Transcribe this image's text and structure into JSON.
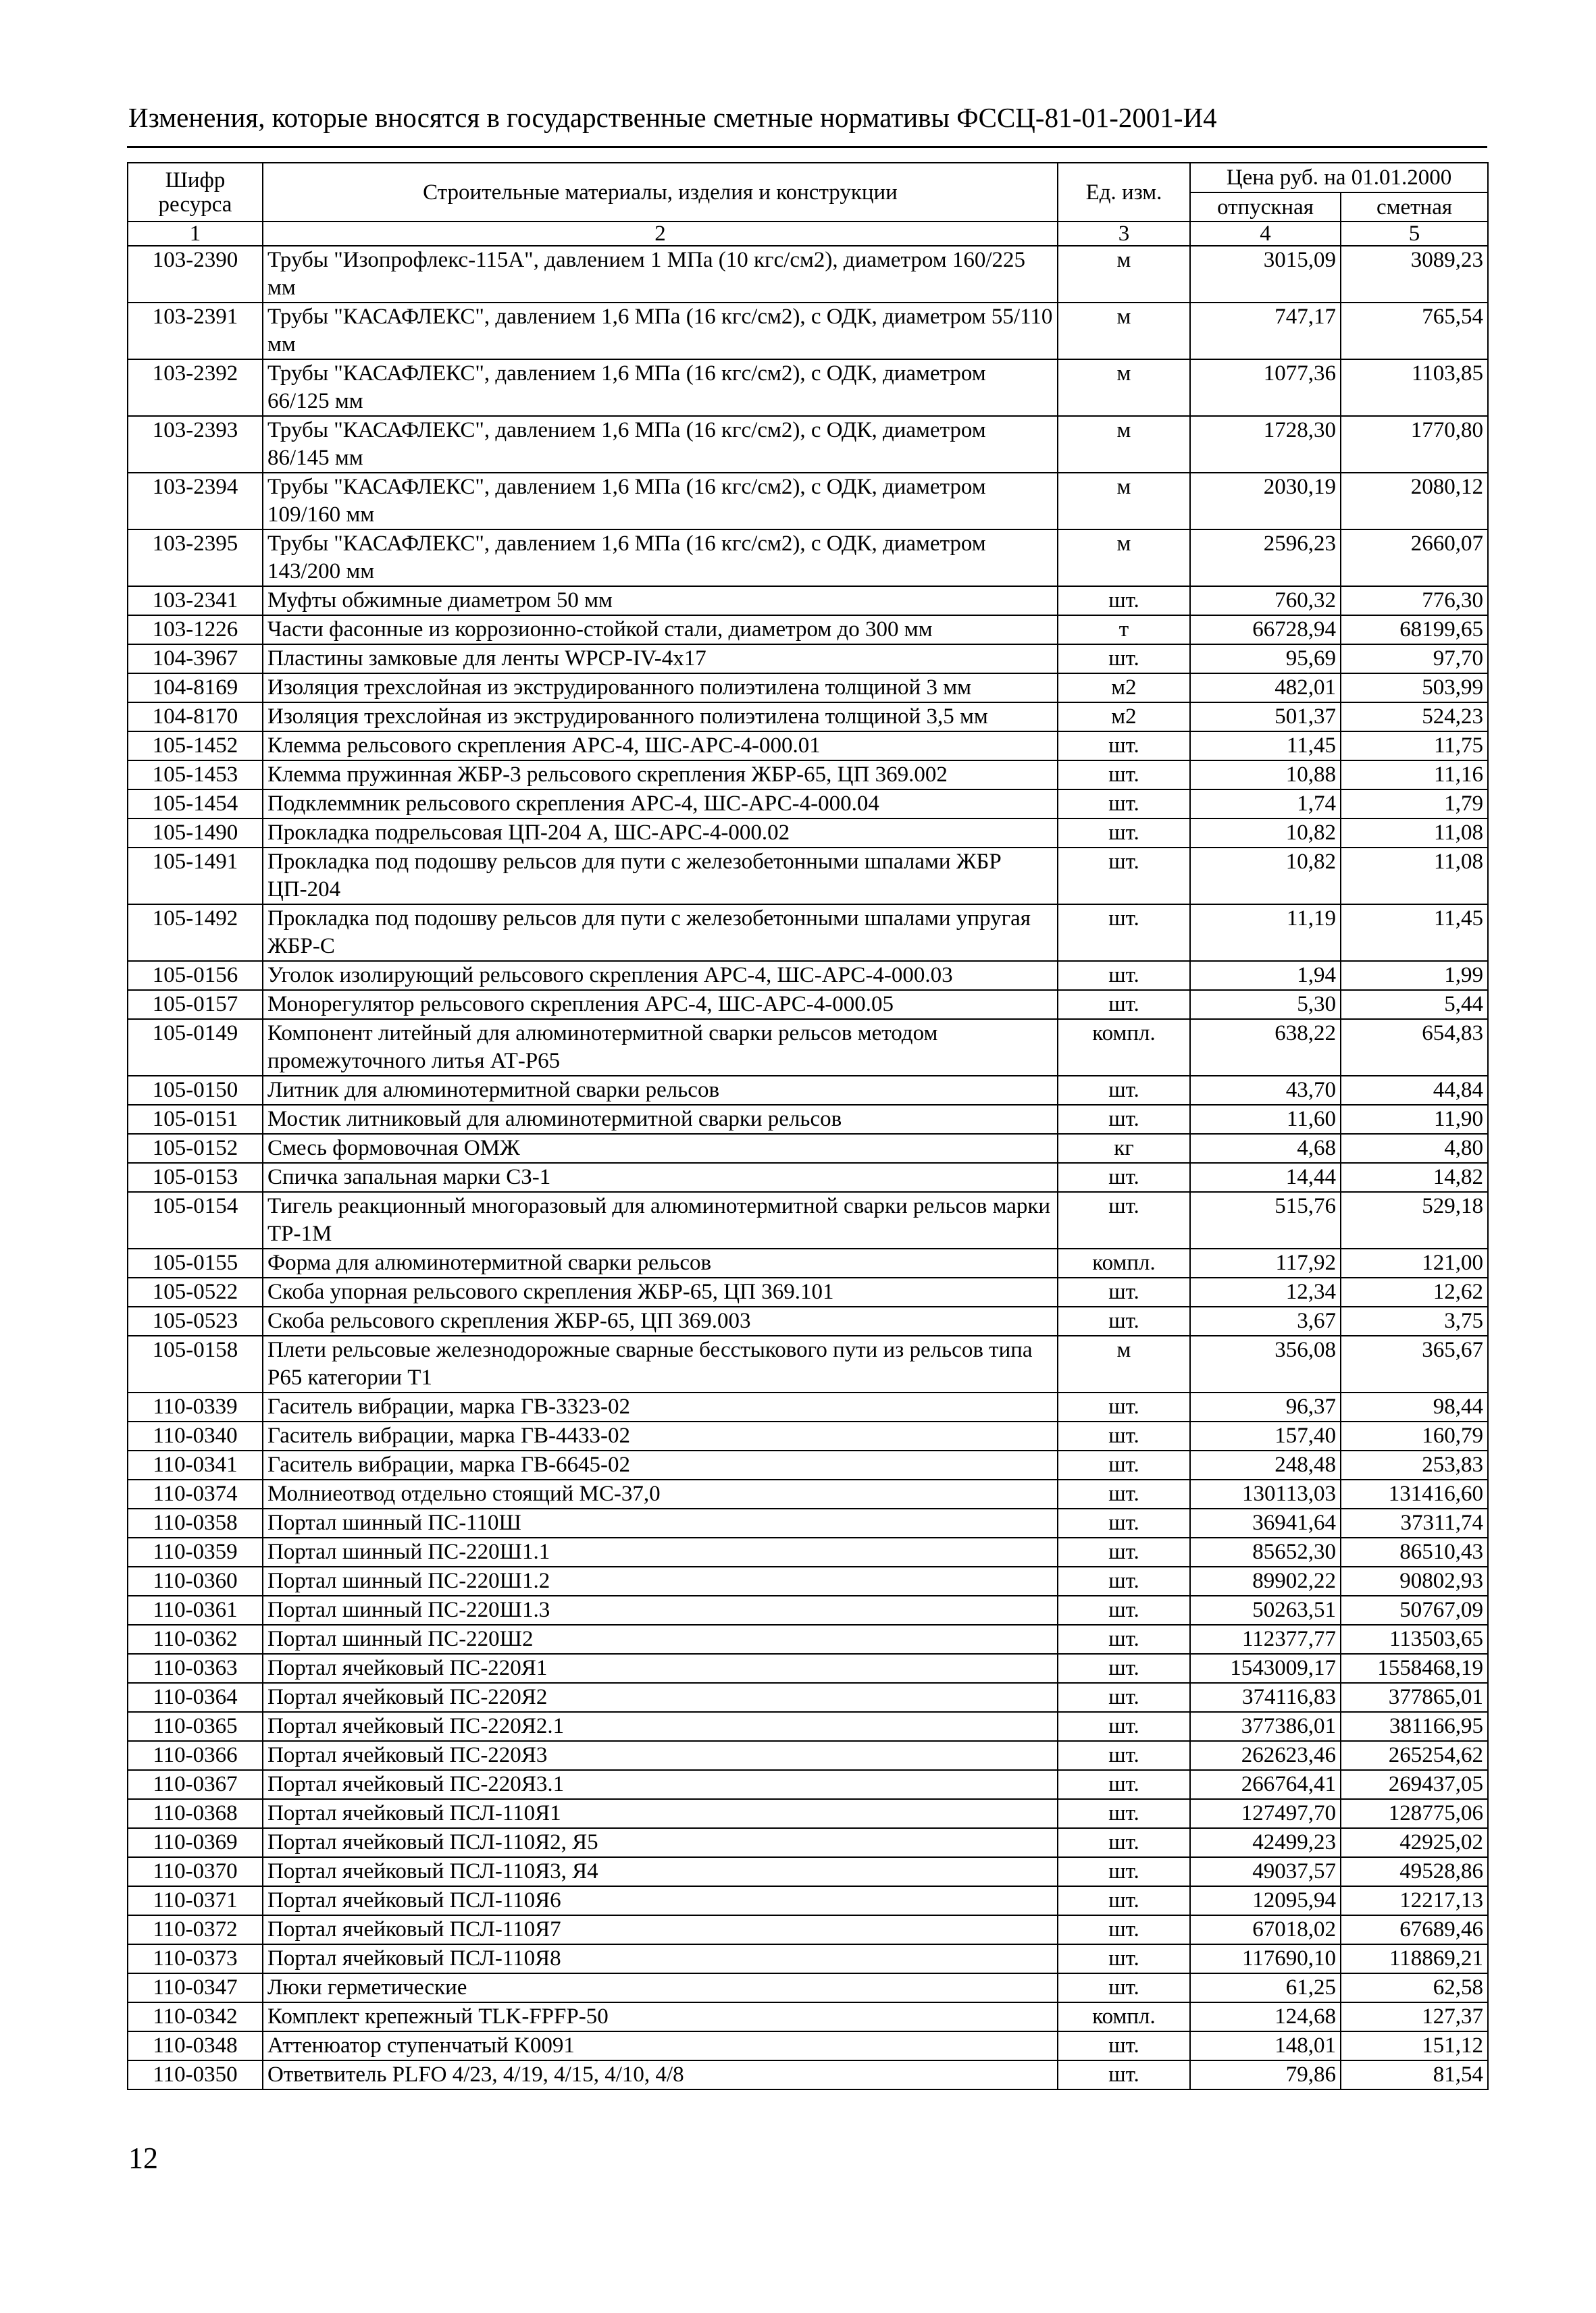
{
  "header": {
    "title": "Изменения, которые вносятся в государственные сметные нормативы ФССЦ-81-01-2001-И4"
  },
  "table": {
    "columns": {
      "code": "Шифр ресурса",
      "name": "Строительные материалы, изделия и конструкции",
      "unit": "Ед. изм.",
      "price_group": "Цена руб. на 01.01.2000",
      "release": "отпускная",
      "estimate": "сметная"
    },
    "column_numbers": [
      "1",
      "2",
      "3",
      "4",
      "5"
    ],
    "rows": [
      [
        "103-2390",
        "Трубы \"Изопрофлекс-115А\", давлением 1 МПа (10 кгс/см2), диаметром 160/225 мм",
        "м",
        "3015,09",
        "3089,23"
      ],
      [
        "103-2391",
        "Трубы \"КАСАФЛЕКС\", давлением 1,6 МПа (16 кгс/см2), с ОДК, диаметром 55/110 мм",
        "м",
        "747,17",
        "765,54"
      ],
      [
        "103-2392",
        "Трубы \"КАСАФЛЕКС\", давлением 1,6 МПа (16 кгс/см2), с ОДК, диаметром 66/125 мм",
        "м",
        "1077,36",
        "1103,85"
      ],
      [
        "103-2393",
        "Трубы \"КАСАФЛЕКС\", давлением 1,6 МПа (16 кгс/см2), с ОДК, диаметром 86/145 мм",
        "м",
        "1728,30",
        "1770,80"
      ],
      [
        "103-2394",
        "Трубы \"КАСАФЛЕКС\", давлением 1,6 МПа (16 кгс/см2), с ОДК, диаметром 109/160 мм",
        "м",
        "2030,19",
        "2080,12"
      ],
      [
        "103-2395",
        "Трубы \"КАСАФЛЕКС\", давлением 1,6 МПа (16 кгс/см2), с ОДК, диаметром 143/200 мм",
        "м",
        "2596,23",
        "2660,07"
      ],
      [
        "103-2341",
        "Муфты обжимные диаметром 50 мм",
        "шт.",
        "760,32",
        "776,30"
      ],
      [
        "103-1226",
        "Части фасонные из коррозионно-стойкой стали, диаметром до 300 мм",
        "т",
        "66728,94",
        "68199,65"
      ],
      [
        "104-3967",
        "Пластины замковые для ленты WPCP-IV-4x17",
        "шт.",
        "95,69",
        "97,70"
      ],
      [
        "104-8169",
        "Изоляция трехслойная из экструдированного полиэтилена толщиной 3 мм",
        "м2",
        "482,01",
        "503,99"
      ],
      [
        "104-8170",
        "Изоляция трехслойная из экструдированного полиэтилена толщиной 3,5 мм",
        "м2",
        "501,37",
        "524,23"
      ],
      [
        "105-1452",
        "Клемма рельсового скрепления АРС-4, ШС-АРС-4-000.01",
        "шт.",
        "11,45",
        "11,75"
      ],
      [
        "105-1453",
        "Клемма пружинная ЖБР-3 рельсового скрепления ЖБР-65, ЦП 369.002",
        "шт.",
        "10,88",
        "11,16"
      ],
      [
        "105-1454",
        "Подклеммник рельсового скрепления АРС-4, ШС-АРС-4-000.04",
        "шт.",
        "1,74",
        "1,79"
      ],
      [
        "105-1490",
        "Прокладка подрельсовая ЦП-204 А, ШС-АРС-4-000.02",
        "шт.",
        "10,82",
        "11,08"
      ],
      [
        "105-1491",
        "Прокладка под подошву рельсов для пути с железобетонными шпалами ЖБР ЦП-204",
        "шт.",
        "10,82",
        "11,08"
      ],
      [
        "105-1492",
        "Прокладка под подошву рельсов для пути с железобетонными шпалами упругая ЖБР-С",
        "шт.",
        "11,19",
        "11,45"
      ],
      [
        "105-0156",
        "Уголок изолирующий рельсового скрепления АРС-4, ШС-АРС-4-000.03",
        "шт.",
        "1,94",
        "1,99"
      ],
      [
        "105-0157",
        "Монорегулятор рельсового скрепления АРС-4, ШС-АРС-4-000.05",
        "шт.",
        "5,30",
        "5,44"
      ],
      [
        "105-0149",
        "Компонент литейный для алюминотермитной сварки рельсов методом промежуточного литья АТ-Р65",
        "компл.",
        "638,22",
        "654,83"
      ],
      [
        "105-0150",
        "Литник для алюминотермитной сварки рельсов",
        "шт.",
        "43,70",
        "44,84"
      ],
      [
        "105-0151",
        "Мостик литниковый для алюминотермитной сварки рельсов",
        "шт.",
        "11,60",
        "11,90"
      ],
      [
        "105-0152",
        "Смесь формовочная ОМЖ",
        "кг",
        "4,68",
        "4,80"
      ],
      [
        "105-0153",
        "Спичка запальная марки СЗ-1",
        "шт.",
        "14,44",
        "14,82"
      ],
      [
        "105-0154",
        "Тигель реакционный многоразовый для алюминотермитной сварки рельсов марки ТР-1М",
        "шт.",
        "515,76",
        "529,18"
      ],
      [
        "105-0155",
        "Форма для алюминотермитной сварки рельсов",
        "компл.",
        "117,92",
        "121,00"
      ],
      [
        "105-0522",
        "Скоба упорная рельсового скрепления ЖБР-65, ЦП 369.101",
        "шт.",
        "12,34",
        "12,62"
      ],
      [
        "105-0523",
        "Скоба рельсового скрепления ЖБР-65, ЦП 369.003",
        "шт.",
        "3,67",
        "3,75"
      ],
      [
        "105-0158",
        "Плети рельсовые железнодорожные сварные бесстыкового пути из рельсов типа Р65 категории Т1",
        "м",
        "356,08",
        "365,67"
      ],
      [
        "110-0339",
        "Гаситель вибрации, марка ГВ-3323-02",
        "шт.",
        "96,37",
        "98,44"
      ],
      [
        "110-0340",
        "Гаситель вибрации, марка ГВ-4433-02",
        "шт.",
        "157,40",
        "160,79"
      ],
      [
        "110-0341",
        "Гаситель вибрации, марка ГВ-6645-02",
        "шт.",
        "248,48",
        "253,83"
      ],
      [
        "110-0374",
        "Молниеотвод отдельно стоящий МС-37,0",
        "шт.",
        "130113,03",
        "131416,60"
      ],
      [
        "110-0358",
        "Портал шинный ПС-110Ш",
        "шт.",
        "36941,64",
        "37311,74"
      ],
      [
        "110-0359",
        "Портал шинный ПС-220Ш1.1",
        "шт.",
        "85652,30",
        "86510,43"
      ],
      [
        "110-0360",
        "Портал шинный ПС-220Ш1.2",
        "шт.",
        "89902,22",
        "90802,93"
      ],
      [
        "110-0361",
        "Портал шинный ПС-220Ш1.3",
        "шт.",
        "50263,51",
        "50767,09"
      ],
      [
        "110-0362",
        "Портал шинный ПС-220Ш2",
        "шт.",
        "112377,77",
        "113503,65"
      ],
      [
        "110-0363",
        "Портал ячейковый ПС-220Я1",
        "шт.",
        "1543009,17",
        "1558468,19"
      ],
      [
        "110-0364",
        "Портал ячейковый ПС-220Я2",
        "шт.",
        "374116,83",
        "377865,01"
      ],
      [
        "110-0365",
        "Портал ячейковый ПС-220Я2.1",
        "шт.",
        "377386,01",
        "381166,95"
      ],
      [
        "110-0366",
        "Портал ячейковый ПС-220Я3",
        "шт.",
        "262623,46",
        "265254,62"
      ],
      [
        "110-0367",
        "Портал ячейковый ПС-220Я3.1",
        "шт.",
        "266764,41",
        "269437,05"
      ],
      [
        "110-0368",
        "Портал ячейковый ПСЛ-110Я1",
        "шт.",
        "127497,70",
        "128775,06"
      ],
      [
        "110-0369",
        "Портал ячейковый ПСЛ-110Я2, Я5",
        "шт.",
        "42499,23",
        "42925,02"
      ],
      [
        "110-0370",
        "Портал ячейковый ПСЛ-110Я3, Я4",
        "шт.",
        "49037,57",
        "49528,86"
      ],
      [
        "110-0371",
        "Портал ячейковый ПСЛ-110Я6",
        "шт.",
        "12095,94",
        "12217,13"
      ],
      [
        "110-0372",
        "Портал ячейковый ПСЛ-110Я7",
        "шт.",
        "67018,02",
        "67689,46"
      ],
      [
        "110-0373",
        "Портал ячейковый ПСЛ-110Я8",
        "шт.",
        "117690,10",
        "118869,21"
      ],
      [
        "110-0347",
        "Люки герметические",
        "шт.",
        "61,25",
        "62,58"
      ],
      [
        "110-0342",
        "Комплект крепежный TLK-FPFP-50",
        "компл.",
        "124,68",
        "127,37"
      ],
      [
        "110-0348",
        "Аттенюатор ступенчатый K0091",
        "шт.",
        "148,01",
        "151,12"
      ],
      [
        "110-0350",
        "Ответвитель PLFO 4/23, 4/19, 4/15, 4/10, 4/8",
        "шт.",
        "79,86",
        "81,54"
      ]
    ]
  },
  "footer": {
    "page_number": "12"
  }
}
